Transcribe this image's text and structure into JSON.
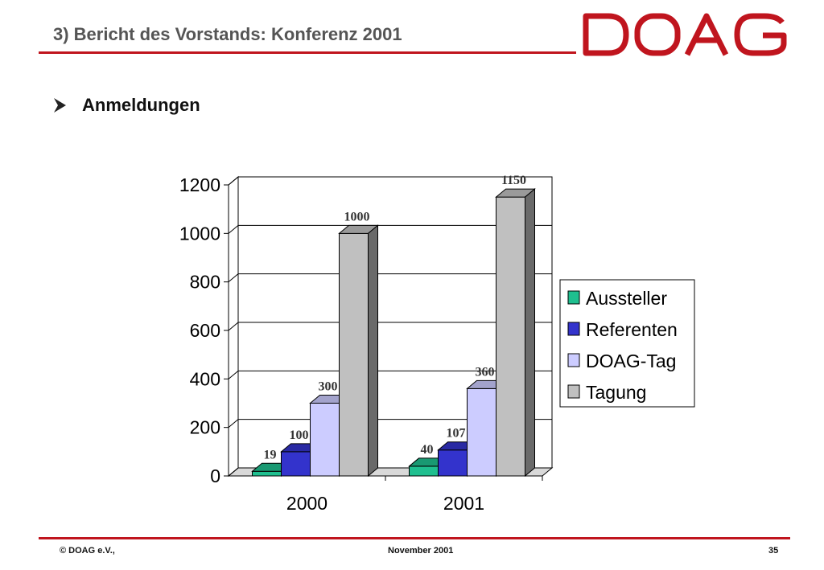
{
  "header": {
    "title": "3) Bericht des Vorstands: Konferenz 2001",
    "logo_text": "DOAG"
  },
  "bullet": {
    "text": "Anmeldungen"
  },
  "chart_data": {
    "type": "bar",
    "style": "3d-clustered",
    "categories": [
      "2000",
      "2001"
    ],
    "series": [
      {
        "name": "Aussteller",
        "values": [
          19,
          40
        ],
        "color": "#1fbf8f"
      },
      {
        "name": "Referenten",
        "values": [
          100,
          107
        ],
        "color": "#3333cc"
      },
      {
        "name": "DOAG-Tag",
        "values": [
          300,
          360
        ],
        "color": "#ccccff"
      },
      {
        "name": "Tagung",
        "values": [
          1000,
          1150
        ],
        "color": "#c0c0c0"
      }
    ],
    "data_labels": [
      [
        "19",
        "40"
      ],
      [
        "100",
        "107"
      ],
      [
        "300",
        "360"
      ],
      [
        "1000",
        "1150"
      ]
    ],
    "y_ticks": [
      "0",
      "200",
      "400",
      "600",
      "800",
      "1000",
      "1200"
    ],
    "ylim": [
      0,
      1200
    ],
    "grid": true,
    "legend_position": "right"
  },
  "footer": {
    "left": "©  DOAG e.V.,",
    "center": "November 2001",
    "page": "35"
  },
  "colors": {
    "brand_red": "#c0151e",
    "title_gray": "#555555"
  }
}
